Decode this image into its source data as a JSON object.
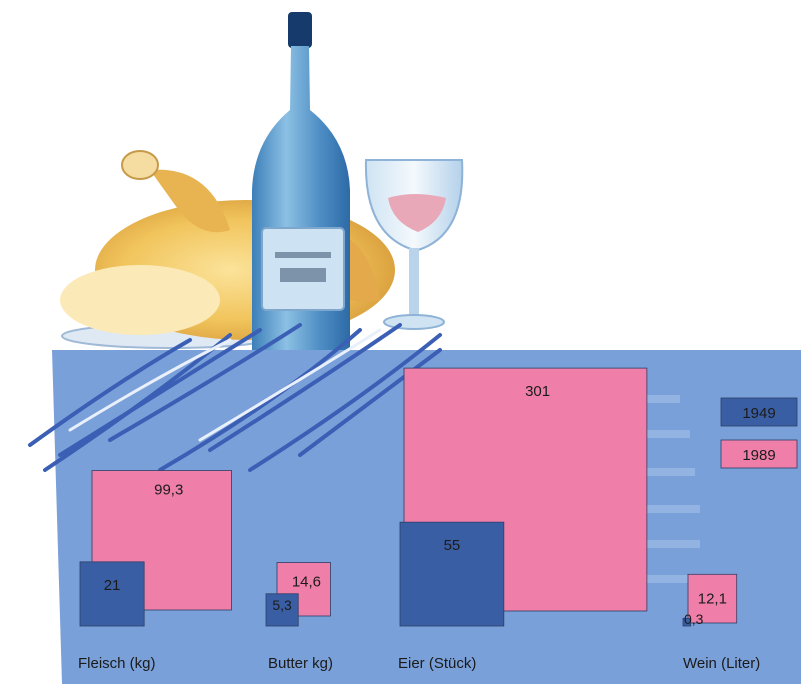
{
  "chart_data": {
    "type": "bar",
    "categories": [
      "Fleisch (kg)",
      "Butter kg)",
      "Eier (Stück)",
      "Wein (Liter)"
    ],
    "series": [
      {
        "name": "1949",
        "values": [
          21,
          5.3,
          55,
          0.3
        ],
        "labels": [
          "21",
          "5,3",
          "55",
          "0,3"
        ]
      },
      {
        "name": "1989",
        "values": [
          99.3,
          14.6,
          301,
          12.1
        ],
        "labels": [
          "99,3",
          "14,6",
          "301",
          "12,1"
        ]
      }
    ],
    "legend": {
      "placement": "right"
    },
    "colors": {
      "1949": "#3a5ea4",
      "1989": "#ef7fa8",
      "panel": "#7aa0d9"
    },
    "encoding": "square area proportional to value"
  }
}
